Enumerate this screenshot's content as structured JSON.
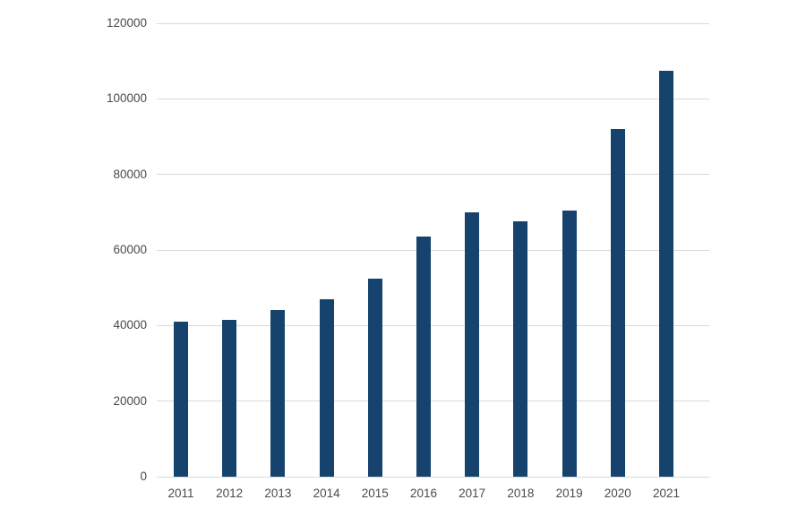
{
  "chart_data": {
    "type": "bar",
    "title": "",
    "xlabel": "",
    "ylabel": "",
    "categories": [
      "2011",
      "2012",
      "2013",
      "2014",
      "2015",
      "2016",
      "2017",
      "2018",
      "2019",
      "2020",
      "2021"
    ],
    "values": [
      41000,
      41500,
      44000,
      47000,
      52500,
      63500,
      70000,
      67500,
      70500,
      92000,
      107500
    ],
    "ylim": [
      0,
      120000
    ],
    "ytick_interval": 20000,
    "ytick_labels": [
      "0",
      "20000",
      "40000",
      "60000",
      "80000",
      "100000",
      "120000"
    ],
    "grid": true,
    "legend": "none",
    "bar_color": "#15436d",
    "gridline_color": "#d9d9d9",
    "axis_label_color": "#4a4a4a",
    "background_color": "#ffffff"
  }
}
